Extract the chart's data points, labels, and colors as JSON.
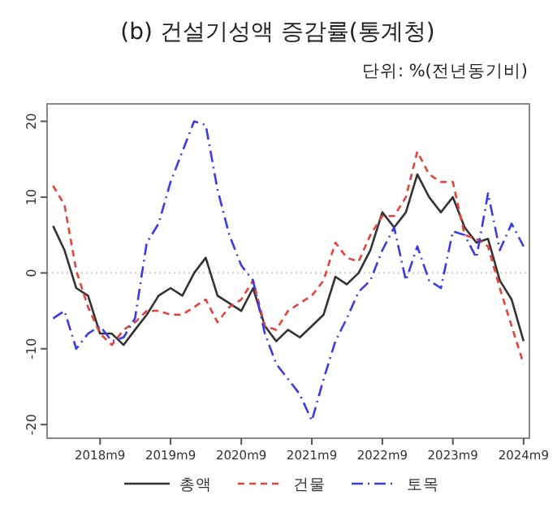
{
  "chart_data": {
    "type": "line",
    "title": "(b) 건설기성액 증감률(통계청)",
    "subtitle": "단위: %(전년동기비)",
    "x": [
      "2018-01",
      "2018-03",
      "2018-05",
      "2018-07",
      "2018-09",
      "2018-11",
      "2019-01",
      "2019-03",
      "2019-05",
      "2019-07",
      "2019-09",
      "2019-11",
      "2020-01",
      "2020-03",
      "2020-05",
      "2020-07",
      "2020-09",
      "2020-11",
      "2021-01",
      "2021-03",
      "2021-05",
      "2021-07",
      "2021-09",
      "2021-11",
      "2022-01",
      "2022-03",
      "2022-05",
      "2022-07",
      "2022-09",
      "2022-11",
      "2023-01",
      "2023-03",
      "2023-05",
      "2023-07",
      "2023-09",
      "2023-11",
      "2024-01",
      "2024-03",
      "2024-05",
      "2024-07",
      "2024-09"
    ],
    "series": [
      {
        "name": "총액",
        "color": "#333333",
        "line_style": "solid",
        "values": [
          6.2,
          3,
          -2,
          -3,
          -8,
          -8,
          -9.5,
          -7.5,
          -5.5,
          -3,
          -2,
          -3,
          0,
          2,
          -3,
          -4,
          -5,
          -2,
          -7,
          -9,
          -7.5,
          -8.5,
          -7,
          -5.5,
          -0.5,
          -1.5,
          0,
          3,
          8,
          6,
          8,
          13,
          10,
          8,
          10,
          6,
          4,
          4.5,
          -1,
          -3.5,
          -9
        ]
      },
      {
        "name": "건물",
        "color": "#e8413c",
        "line_style": "dashed",
        "values": [
          11.5,
          9,
          0.3,
          -4.5,
          -8,
          -9.5,
          -7.5,
          -6.5,
          -5,
          -5,
          -5.5,
          -5.5,
          -4.5,
          -3.5,
          -6.5,
          -4.5,
          -3.5,
          -1,
          -7,
          -7.5,
          -5,
          -4,
          -3,
          -1,
          4,
          2,
          1.5,
          5,
          7.5,
          7.5,
          10,
          16,
          13,
          12,
          12,
          5,
          4.5,
          3.5,
          -2,
          -7,
          -12
        ]
      },
      {
        "name": "토목",
        "color": "#3a3ae8",
        "line_style": "dashdot",
        "values": [
          -6,
          -5,
          -10,
          -8,
          -7,
          -9,
          -8.5,
          -6,
          4,
          6.5,
          12,
          16,
          20,
          19.5,
          11,
          5,
          1,
          -1,
          -8,
          -12,
          -14,
          -16,
          -19.5,
          -14,
          -9,
          -6,
          -2.5,
          -1,
          3,
          6,
          -1,
          3.5,
          -1,
          -2,
          5.5,
          5,
          2,
          10.5,
          3,
          6.5,
          3.5
        ]
      }
    ],
    "xlim": [
      "2017-12",
      "2024-10"
    ],
    "xticks": [
      {
        "value": "2018-09",
        "label": "2018m9"
      },
      {
        "value": "2019-09",
        "label": "2019m9"
      },
      {
        "value": "2020-09",
        "label": "2020m9"
      },
      {
        "value": "2021-09",
        "label": "2021m9"
      },
      {
        "value": "2022-09",
        "label": "2022m9"
      },
      {
        "value": "2023-09",
        "label": "2023m9"
      },
      {
        "value": "2024-09",
        "label": "2024m9"
      }
    ],
    "ylim": [
      -21.8,
      22.3
    ],
    "yticks": [
      -20,
      -10,
      0,
      10,
      20
    ],
    "ref_lines": [
      {
        "axis": "y",
        "value": 0,
        "color": "#cccccc",
        "line_style": "dotted"
      }
    ],
    "grid": false,
    "legend": "bottom"
  }
}
